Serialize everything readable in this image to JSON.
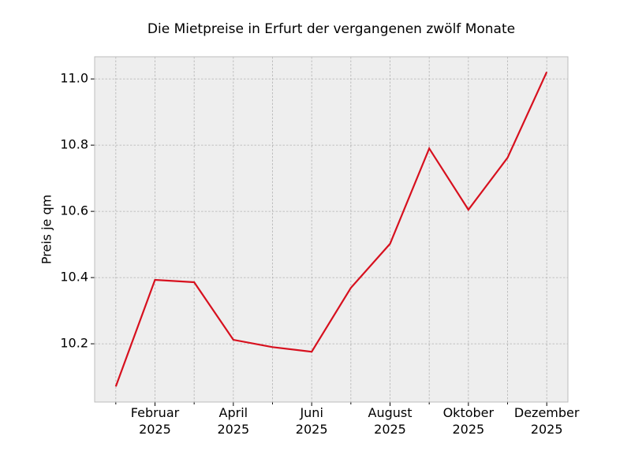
{
  "chart_data": {
    "type": "line",
    "title": "Die Mietpreise in Erfurt der vergangenen zwölf Monate",
    "ylabel": "Preis je qm",
    "categories": [
      null,
      "Februar 2025",
      null,
      "April 2025",
      null,
      "Juni 2025",
      null,
      "August 2025",
      null,
      "Oktober 2025",
      null,
      "Dezember 2025"
    ],
    "values": [
      10.071,
      10.393,
      10.386,
      10.212,
      10.19,
      10.176,
      10.369,
      10.502,
      10.79,
      10.605,
      10.762,
      11.021
    ],
    "color": "#d7101e",
    "ylim": [
      10.024,
      11.067
    ],
    "yticks": [
      10.2,
      10.4,
      10.6,
      10.8,
      {
        "value": 11,
        "label": "11.0"
      }
    ],
    "grid": true
  }
}
